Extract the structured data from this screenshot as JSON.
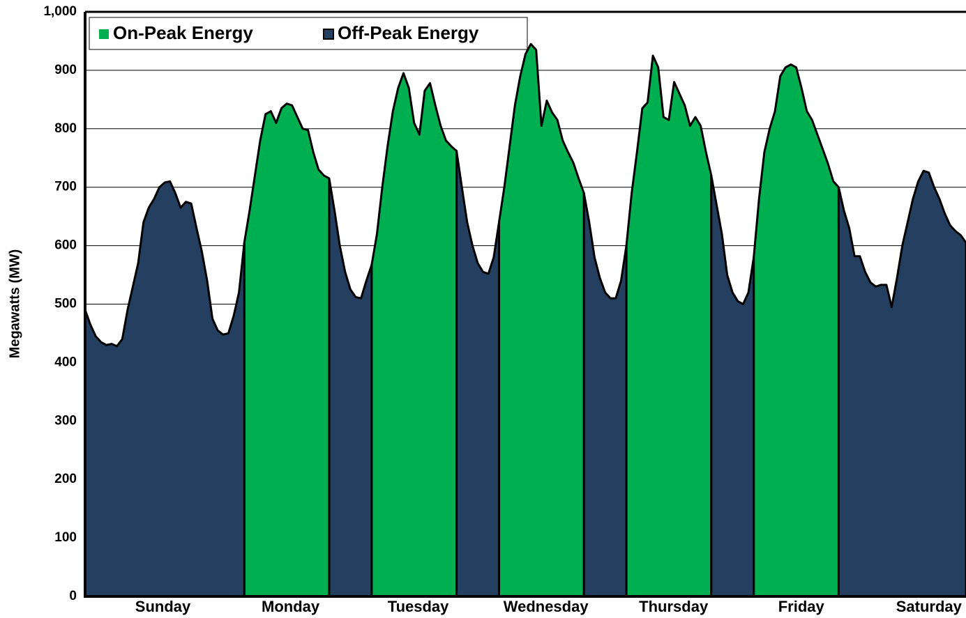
{
  "chart_data": {
    "type": "area",
    "y_label": "Megawatts (MW)",
    "categories": [
      "Sunday",
      "Monday",
      "Tuesday",
      "Wednesday",
      "Thursday",
      "Friday",
      "Saturday"
    ],
    "x": [
      0,
      1,
      2,
      3,
      4,
      5,
      6,
      7,
      8,
      9,
      10,
      11,
      12,
      13,
      14,
      15,
      16,
      17,
      18,
      19,
      20,
      21,
      22,
      23,
      24,
      25,
      26,
      27,
      28,
      29,
      30,
      31,
      32,
      33,
      34,
      35,
      36,
      37,
      38,
      39,
      40,
      41,
      42,
      43,
      44,
      45,
      46,
      47,
      48,
      49,
      50,
      51,
      52,
      53,
      54,
      55,
      56,
      57,
      58,
      59,
      60,
      61,
      62,
      63,
      64,
      65,
      66,
      67,
      68,
      69,
      70,
      71,
      72,
      73,
      74,
      75,
      76,
      77,
      78,
      79,
      80,
      81,
      82,
      83,
      84,
      85,
      86,
      87,
      88,
      89,
      90,
      91,
      92,
      93,
      94,
      95,
      96,
      97,
      98,
      99,
      100,
      101,
      102,
      103,
      104,
      105,
      106,
      107,
      108,
      109,
      110,
      111,
      112,
      113,
      114,
      115,
      116,
      117,
      118,
      119,
      120,
      121,
      122,
      123,
      124,
      125,
      126,
      127,
      128,
      129,
      130,
      131,
      132,
      133,
      134,
      135,
      136,
      137,
      138,
      139,
      140,
      141,
      142,
      143,
      144,
      145,
      146,
      147,
      148,
      149,
      150,
      151,
      152,
      153,
      154,
      155,
      156,
      157,
      158,
      159,
      160,
      161,
      162,
      163,
      164,
      165,
      166
    ],
    "xlim": [
      0,
      166
    ],
    "ylim": [
      0,
      1000
    ],
    "yticks": [
      0,
      100,
      200,
      300,
      400,
      500,
      600,
      700,
      800,
      900,
      {
        "value": 1000,
        "label": "1,000"
      }
    ],
    "grid": true,
    "legend": "top-left",
    "series": [
      {
        "name": "On-Peak Energy",
        "color": "#00b050",
        "values": [
          null,
          null,
          null,
          null,
          null,
          null,
          null,
          null,
          null,
          null,
          null,
          null,
          null,
          null,
          null,
          null,
          null,
          null,
          null,
          null,
          null,
          null,
          null,
          null,
          null,
          null,
          null,
          null,
          null,
          null,
          605,
          660,
          720,
          780,
          825,
          830,
          810,
          835,
          843,
          840,
          820,
          800,
          798,
          760,
          730,
          720,
          715,
          null,
          null,
          null,
          null,
          null,
          null,
          null,
          567,
          620,
          700,
          770,
          830,
          870,
          895,
          870,
          810,
          790,
          865,
          878,
          840,
          805,
          780,
          770,
          762,
          null,
          null,
          null,
          null,
          null,
          null,
          null,
          640,
          700,
          770,
          840,
          890,
          928,
          945,
          935,
          805,
          848,
          828,
          815,
          780,
          760,
          742,
          715,
          690,
          null,
          null,
          null,
          null,
          null,
          null,
          null,
          600,
          690,
          760,
          835,
          845,
          925,
          905,
          820,
          815,
          880,
          860,
          840,
          805,
          820,
          805,
          760,
          720,
          null,
          null,
          null,
          null,
          null,
          null,
          null,
          580,
          680,
          760,
          800,
          830,
          890,
          905,
          910,
          905,
          870,
          830,
          815,
          790,
          765,
          740,
          710,
          700,
          null,
          null,
          null,
          null,
          null,
          null,
          null,
          null,
          null,
          null,
          null,
          null,
          null,
          null,
          null,
          null,
          null,
          null,
          null,
          null,
          null,
          null,
          null,
          null
        ]
      },
      {
        "name": "Off-Peak Energy",
        "color": "#243f60",
        "values": [
          490,
          465,
          445,
          435,
          430,
          432,
          428,
          440,
          490,
          530,
          570,
          640,
          665,
          680,
          700,
          708,
          710,
          690,
          665,
          675,
          672,
          630,
          590,
          540,
          475,
          455,
          448,
          450,
          480,
          520,
          605,
          null,
          null,
          null,
          null,
          null,
          null,
          null,
          null,
          null,
          null,
          null,
          null,
          null,
          null,
          null,
          715,
          660,
          600,
          555,
          525,
          512,
          510,
          540,
          567,
          null,
          null,
          null,
          null,
          null,
          null,
          null,
          null,
          null,
          null,
          null,
          null,
          null,
          null,
          null,
          762,
          700,
          640,
          600,
          570,
          555,
          552,
          580,
          640,
          null,
          null,
          null,
          null,
          null,
          null,
          null,
          null,
          null,
          null,
          null,
          null,
          null,
          null,
          null,
          690,
          640,
          580,
          545,
          520,
          510,
          510,
          540,
          600,
          null,
          null,
          null,
          null,
          null,
          null,
          null,
          null,
          null,
          null,
          null,
          null,
          null,
          null,
          null,
          720,
          670,
          620,
          550,
          520,
          505,
          500,
          520,
          580,
          null,
          null,
          null,
          null,
          null,
          null,
          null,
          null,
          null,
          null,
          null,
          null,
          null,
          null,
          null,
          700,
          660,
          630,
          582,
          582,
          555,
          537,
          530,
          533,
          533,
          495,
          545,
          600,
          640,
          680,
          710,
          728,
          725,
          700,
          680,
          655,
          635,
          625,
          618,
          605
        ]
      }
    ]
  }
}
